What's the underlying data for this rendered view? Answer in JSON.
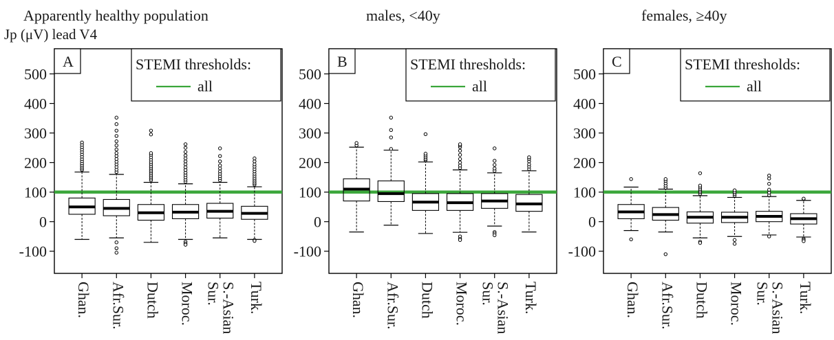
{
  "header": {
    "population_title": "Apparently healthy population",
    "ylabel": "Jp (μV) lead V4"
  },
  "chart_data": [
    {
      "type": "boxplot",
      "panel_label": "A",
      "title": "",
      "ylabel": "Jp (μV) lead V4",
      "ylim": [
        -175,
        585
      ],
      "yticks": [
        -100,
        0,
        100,
        200,
        300,
        400,
        500
      ],
      "categories": [
        "Ghan.",
        "Afr.Sur.",
        "Dutch",
        "Moroc.",
        "S.-Asian Sur.",
        "Turk."
      ],
      "threshold": {
        "value": 100,
        "color": "#3aa63a"
      },
      "legend": {
        "title": "STEMI thresholds:",
        "entries": [
          {
            "label": "all",
            "color": "#3aa63a"
          }
        ],
        "position": "top-right"
      },
      "boxes": [
        {
          "q1": 25,
          "median": 50,
          "q3": 80,
          "low": -60,
          "high": 168,
          "outliers": [
            175,
            180,
            186,
            192,
            198,
            205,
            212,
            220,
            228,
            236,
            244,
            252,
            260,
            268
          ]
        },
        {
          "q1": 20,
          "median": 45,
          "q3": 75,
          "low": -55,
          "high": 160,
          "outliers": [
            -70,
            -90,
            -105,
            168,
            176,
            185,
            194,
            203,
            212,
            222,
            232,
            244,
            258,
            272,
            290,
            308,
            330,
            352
          ]
        },
        {
          "q1": 5,
          "median": 30,
          "q3": 58,
          "low": -70,
          "high": 133,
          "outliers": [
            140,
            146,
            152,
            158,
            164,
            170,
            176,
            182,
            188,
            195,
            202,
            210,
            218,
            226,
            232,
            295,
            308
          ]
        },
        {
          "q1": 10,
          "median": 32,
          "q3": 58,
          "low": -60,
          "high": 128,
          "outliers": [
            -68,
            -74,
            -78,
            135,
            142,
            150,
            158,
            166,
            175,
            184,
            194,
            204,
            214,
            224,
            236,
            250,
            262
          ]
        },
        {
          "q1": 12,
          "median": 35,
          "q3": 62,
          "low": -55,
          "high": 133,
          "outliers": [
            140,
            147,
            154,
            162,
            170,
            180,
            190,
            204,
            222,
            248
          ]
        },
        {
          "q1": 8,
          "median": 28,
          "q3": 52,
          "low": -60,
          "high": 118,
          "outliers": [
            -62,
            -65,
            125,
            130,
            136,
            142,
            148,
            155,
            162,
            170,
            178,
            186,
            194,
            204,
            214
          ]
        }
      ]
    },
    {
      "type": "boxplot",
      "panel_label": "B",
      "title": "males, <40y",
      "ylim": [
        -175,
        585
      ],
      "yticks": [
        -100,
        0,
        100,
        200,
        300,
        400,
        500
      ],
      "categories": [
        "Ghan.",
        "Afr.Sur.",
        "Dutch",
        "Moroc.",
        "S.-Asian Sur.",
        "Turk."
      ],
      "threshold": {
        "value": 100,
        "color": "#3aa63a"
      },
      "legend": {
        "title": "STEMI thresholds:",
        "entries": [
          {
            "label": "all",
            "color": "#3aa63a"
          }
        ],
        "position": "top-right"
      },
      "boxes": [
        {
          "q1": 70,
          "median": 110,
          "q3": 145,
          "low": -35,
          "high": 252,
          "outliers": [
            258,
            266
          ]
        },
        {
          "q1": 68,
          "median": 95,
          "q3": 138,
          "low": -12,
          "high": 242,
          "outliers": [
            246,
            285,
            310,
            352
          ]
        },
        {
          "q1": 38,
          "median": 66,
          "q3": 95,
          "low": -40,
          "high": 202,
          "outliers": [
            208,
            212,
            218,
            224,
            230,
            296
          ]
        },
        {
          "q1": 38,
          "median": 64,
          "q3": 95,
          "low": -36,
          "high": 175,
          "outliers": [
            -50,
            -58,
            -62,
            182,
            190,
            200,
            212,
            226,
            240,
            252,
            258,
            262
          ]
        },
        {
          "q1": 45,
          "median": 70,
          "q3": 95,
          "low": -15,
          "high": 165,
          "outliers": [
            -35,
            -40,
            -46,
            172,
            180,
            192,
            206,
            248
          ]
        },
        {
          "q1": 35,
          "median": 60,
          "q3": 92,
          "low": -35,
          "high": 172,
          "outliers": [
            178,
            186,
            194,
            204,
            212,
            218
          ]
        }
      ]
    },
    {
      "type": "boxplot",
      "panel_label": "C",
      "title": "females, ≥40y",
      "ylim": [
        -175,
        585
      ],
      "yticks": [
        -100,
        0,
        100,
        200,
        300,
        400,
        500
      ],
      "categories": [
        "Ghan.",
        "Afr.Sur.",
        "Dutch",
        "Moroc.",
        "S.-Asian Sur.",
        "Turk."
      ],
      "threshold": {
        "value": 100,
        "color": "#3aa63a"
      },
      "legend": {
        "title": "STEMI thresholds:",
        "entries": [
          {
            "label": "all",
            "color": "#3aa63a"
          }
        ],
        "position": "top-right"
      },
      "boxes": [
        {
          "q1": 10,
          "median": 33,
          "q3": 58,
          "low": -30,
          "high": 117,
          "outliers": [
            -60,
            144
          ]
        },
        {
          "q1": 5,
          "median": 24,
          "q3": 48,
          "low": -35,
          "high": 110,
          "outliers": [
            -110,
            115,
            122,
            130,
            138,
            144
          ]
        },
        {
          "q1": -5,
          "median": 15,
          "q3": 33,
          "low": -55,
          "high": 88,
          "outliers": [
            -68,
            -72,
            94,
            100,
            105,
            110,
            116,
            122,
            164
          ]
        },
        {
          "q1": -3,
          "median": 15,
          "q3": 32,
          "low": -50,
          "high": 82,
          "outliers": [
            -62,
            -75,
            88,
            94,
            100,
            106
          ]
        },
        {
          "q1": 0,
          "median": 18,
          "q3": 35,
          "low": -45,
          "high": 85,
          "outliers": [
            -50,
            90,
            98,
            108,
            128,
            146,
            156
          ]
        },
        {
          "q1": -8,
          "median": 10,
          "q3": 27,
          "low": -52,
          "high": 72,
          "outliers": [
            -58,
            -62,
            -66,
            76,
            78
          ]
        }
      ]
    }
  ]
}
